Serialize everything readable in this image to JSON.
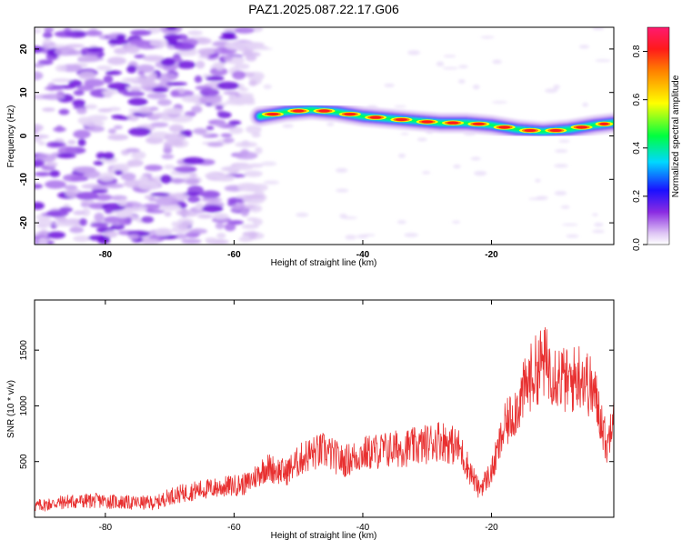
{
  "title": "PAZ1.2025.087.22.17.G06",
  "chart_data": [
    {
      "type": "heatmap",
      "xlabel": "Height of straight line (km)",
      "ylabel": "Frequency (Hz)",
      "xlim": [
        -91,
        -1
      ],
      "ylim": [
        -25,
        25
      ],
      "xticks": [
        -80,
        -60,
        -40,
        -20
      ],
      "yticks": [
        -20,
        -10,
        0,
        10,
        20
      ],
      "colorbar": {
        "label": "Normalized spectral amplitude",
        "range": [
          0,
          0.9
        ],
        "ticks": [
          "0.0",
          "0.2",
          "0.4",
          "0.6",
          "0.8"
        ]
      },
      "noise_region_x": [
        -91,
        -56
      ],
      "signal_track": {
        "x": [
          -56,
          -52,
          -48,
          -44,
          -40,
          -36,
          -32,
          -28,
          -24,
          -20,
          -16,
          -12,
          -8,
          -4,
          -1
        ],
        "frequency": [
          4.5,
          5.5,
          6,
          5.5,
          4.5,
          4,
          3.5,
          3,
          3,
          2.5,
          1.5,
          1,
          1.5,
          2.5,
          3
        ]
      }
    },
    {
      "type": "line",
      "xlabel": "Height of straight line (km)",
      "ylabel": "SNR (10 * v/v)",
      "xlim": [
        -91,
        -1
      ],
      "ylim": [
        0,
        1950
      ],
      "xticks": [
        -80,
        -60,
        -40,
        -20
      ],
      "yticks": [
        500,
        1000,
        1500
      ],
      "color": "#e83030",
      "series": [
        {
          "x": [
            -91,
            -86,
            -81,
            -76,
            -72,
            -70,
            -66,
            -62,
            -58,
            -55,
            -52,
            -49,
            -46,
            -43,
            -40,
            -37,
            -34,
            -31,
            -28,
            -25,
            -22,
            -20,
            -18,
            -16,
            -14,
            -12,
            -10,
            -8,
            -6,
            -4,
            -3,
            -2,
            -1
          ],
          "y": [
            100,
            140,
            150,
            130,
            130,
            190,
            240,
            270,
            300,
            450,
            400,
            550,
            600,
            500,
            570,
            600,
            620,
            640,
            700,
            620,
            250,
            400,
            800,
            1000,
            1250,
            1400,
            1300,
            1200,
            1300,
            1100,
            900,
            600,
            1100
          ]
        }
      ]
    }
  ]
}
